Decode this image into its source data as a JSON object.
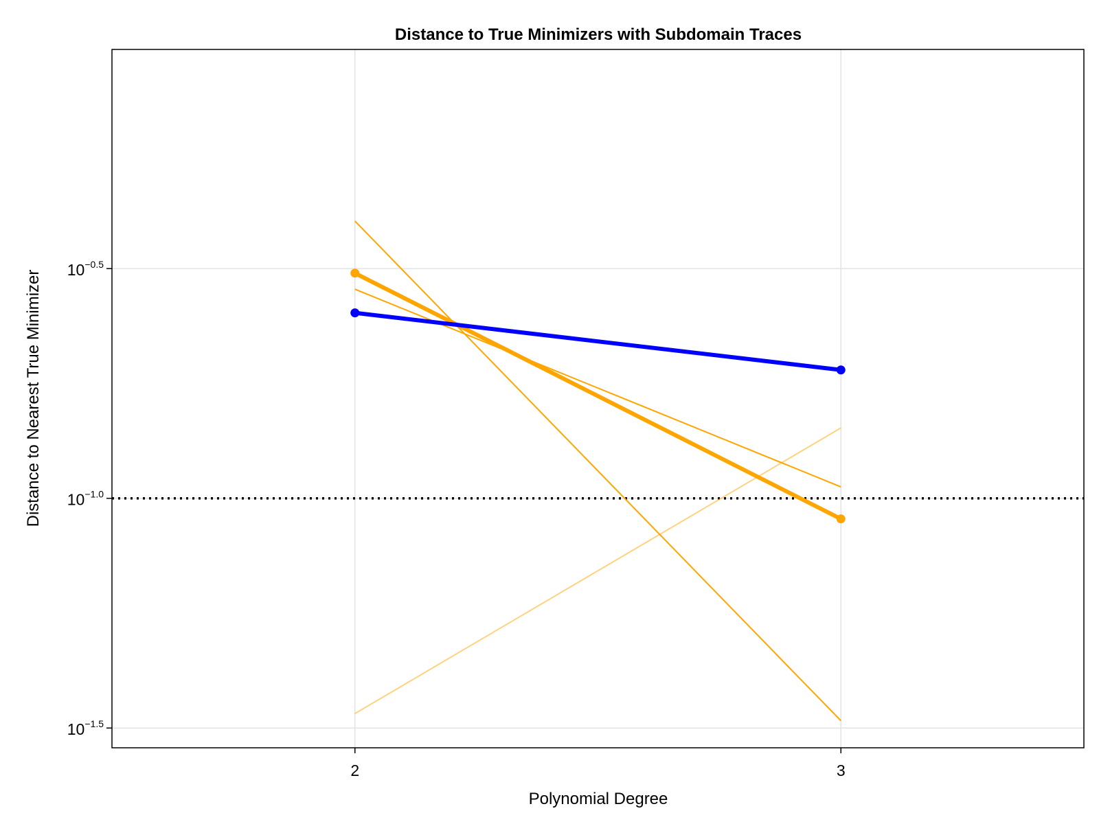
{
  "chart_data": {
    "type": "line",
    "title": "Distance to True Minimizers with Subdomain Traces",
    "xlabel": "Polynomial Degree",
    "ylabel": "Distance to Nearest True Minimizer",
    "yscale": "log10",
    "x": [
      2,
      3
    ],
    "xticks": [
      2,
      3
    ],
    "xtick_labels": [
      "2",
      "3"
    ],
    "xlim": [
      1.5,
      3.5
    ],
    "yticks": [
      -1.5,
      -1.0,
      -0.5
    ],
    "ytick_bases": [
      "10",
      "10",
      "10"
    ],
    "ytick_exponents": [
      "−1.5",
      "−1.0",
      "−0.5"
    ],
    "ylim_log10": [
      -1.543,
      -0.023
    ],
    "grid": true,
    "legend": "none",
    "threshold": {
      "y": 0.1,
      "style": "dotted",
      "color": "#000000"
    },
    "series": [
      {
        "values": [
          0.2533,
          0.1903
        ],
        "color": "#0000ff",
        "role": "main",
        "markers": true
      },
      {
        "values": [
          0.3091,
          0.0902
        ],
        "color": "#ffa500",
        "role": "main",
        "markers": true
      },
      {
        "values": [
          0.4013,
          0.0328
        ],
        "color": "#ffa500",
        "role": "trace"
      },
      {
        "values": [
          0.2852,
          0.1059
        ],
        "color": "#ffa500",
        "role": "trace"
      },
      {
        "values": [
          0.034,
          0.1423
        ],
        "color": "#ffa500",
        "role": "trace-light"
      }
    ]
  }
}
